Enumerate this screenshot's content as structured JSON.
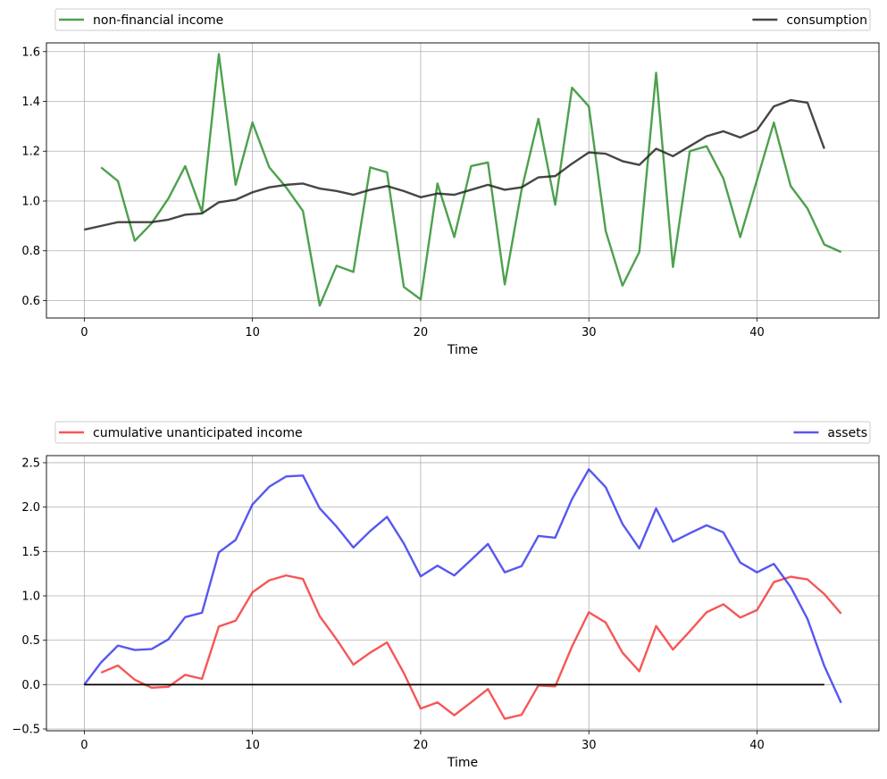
{
  "chart_data": [
    {
      "type": "line",
      "xlabel": "Time",
      "ylabel": "",
      "xlim": [
        -2.25,
        47.25
      ],
      "ylim": [
        0.53,
        1.635
      ],
      "xticks": [
        0,
        10,
        20,
        30,
        40
      ],
      "yticks": [
        0.6,
        0.8,
        1.0,
        1.2,
        1.4,
        1.6
      ],
      "xtick_labels": [
        "0",
        "10",
        "20",
        "30",
        "40"
      ],
      "ytick_labels": [
        "0.6",
        "0.8",
        "1.0",
        "1.2",
        "1.4",
        "1.6"
      ],
      "grid": true,
      "legend": {
        "placement": "top-outside, expanded",
        "entries": [
          "non-financial income",
          "consumption"
        ]
      },
      "series": [
        {
          "name": "non-financial income",
          "color": "#2e912e",
          "x": [
            1,
            2,
            3,
            4,
            5,
            6,
            7,
            8,
            9,
            10,
            11,
            12,
            13,
            14,
            15,
            16,
            17,
            18,
            19,
            20,
            21,
            22,
            23,
            24,
            25,
            26,
            27,
            28,
            29,
            30,
            31,
            32,
            33,
            34,
            35,
            36,
            37,
            38,
            39,
            40,
            41,
            42,
            43,
            44,
            45
          ],
          "values": [
            1.135,
            1.08,
            0.84,
            0.91,
            1.01,
            1.14,
            0.955,
            1.59,
            1.065,
            1.315,
            1.135,
            1.055,
            0.96,
            0.58,
            0.74,
            0.715,
            1.135,
            1.115,
            0.655,
            0.605,
            1.07,
            0.855,
            1.14,
            1.155,
            0.665,
            1.045,
            1.33,
            0.985,
            1.455,
            1.38,
            0.88,
            0.66,
            0.795,
            1.515,
            0.735,
            1.2,
            1.22,
            1.09,
            0.855,
            1.085,
            1.315,
            1.06,
            0.97,
            0.825,
            0.795
          ]
        },
        {
          "name": "consumption",
          "color": "#262626",
          "x": [
            0,
            1,
            2,
            3,
            4,
            5,
            6,
            7,
            8,
            9,
            10,
            11,
            12,
            13,
            14,
            15,
            16,
            17,
            18,
            19,
            20,
            21,
            22,
            23,
            24,
            25,
            26,
            27,
            28,
            29,
            30,
            31,
            32,
            33,
            34,
            35,
            36,
            37,
            38,
            39,
            40,
            41,
            42,
            43,
            44
          ],
          "values": [
            0.885,
            0.9,
            0.915,
            0.915,
            0.915,
            0.925,
            0.945,
            0.95,
            0.995,
            1.005,
            1.035,
            1.055,
            1.065,
            1.07,
            1.05,
            1.04,
            1.025,
            1.045,
            1.06,
            1.04,
            1.015,
            1.03,
            1.025,
            1.045,
            1.065,
            1.045,
            1.055,
            1.095,
            1.1,
            1.15,
            1.195,
            1.19,
            1.16,
            1.145,
            1.21,
            1.18,
            1.22,
            1.26,
            1.28,
            1.255,
            1.285,
            1.38,
            1.405,
            1.395,
            1.21
          ]
        }
      ]
    },
    {
      "type": "line",
      "xlabel": "Time",
      "ylabel": "",
      "xlim": [
        -2.25,
        47.25
      ],
      "ylim": [
        -0.52,
        2.58
      ],
      "xticks": [
        0,
        10,
        20,
        30,
        40
      ],
      "yticks": [
        -0.5,
        0.0,
        0.5,
        1.0,
        1.5,
        2.0,
        2.5
      ],
      "xtick_labels": [
        "0",
        "10",
        "20",
        "30",
        "40"
      ],
      "ytick_labels": [
        "−0.5",
        "0.0",
        "0.5",
        "1.0",
        "1.5",
        "2.0",
        "2.5"
      ],
      "grid": true,
      "legend": {
        "placement": "top-outside, expanded",
        "entries": [
          "cumulative unanticipated income",
          "assets"
        ]
      },
      "series": [
        {
          "name": "cumulative unanticipated income",
          "color": "#f53a3a",
          "x": [
            1,
            2,
            3,
            4,
            5,
            6,
            7,
            8,
            9,
            10,
            11,
            12,
            13,
            14,
            15,
            16,
            17,
            18,
            19,
            20,
            21,
            22,
            23,
            24,
            25,
            26,
            27,
            28,
            29,
            30,
            31,
            32,
            33,
            34,
            35,
            36,
            37,
            38,
            39,
            40,
            41,
            42,
            43,
            44,
            45
          ],
          "values": [
            0.135,
            0.215,
            0.055,
            -0.035,
            -0.025,
            0.11,
            0.065,
            0.655,
            0.72,
            1.04,
            1.175,
            1.23,
            1.19,
            0.77,
            0.51,
            0.225,
            0.36,
            0.475,
            0.13,
            -0.27,
            -0.2,
            -0.345,
            -0.2,
            -0.05,
            -0.385,
            -0.34,
            -0.01,
            -0.02,
            0.43,
            0.815,
            0.7,
            0.36,
            0.15,
            0.66,
            0.395,
            0.6,
            0.815,
            0.905,
            0.755,
            0.84,
            1.155,
            1.215,
            1.185,
            1.02,
            0.8
          ]
        },
        {
          "name": "assets",
          "color": "#3a3af0",
          "x": [
            0,
            1,
            2,
            3,
            4,
            5,
            6,
            7,
            8,
            9,
            10,
            11,
            12,
            13,
            14,
            15,
            16,
            17,
            18,
            19,
            20,
            21,
            22,
            23,
            24,
            25,
            26,
            27,
            28,
            29,
            30,
            31,
            32,
            33,
            34,
            35,
            36,
            37,
            38,
            39,
            40,
            41,
            42,
            43,
            44,
            45
          ],
          "values": [
            0.0,
            0.25,
            0.44,
            0.39,
            0.4,
            0.51,
            0.76,
            0.81,
            1.49,
            1.63,
            2.03,
            2.23,
            2.345,
            2.355,
            1.985,
            1.78,
            1.545,
            1.73,
            1.89,
            1.59,
            1.22,
            1.34,
            1.23,
            1.405,
            1.585,
            1.265,
            1.335,
            1.675,
            1.655,
            2.09,
            2.425,
            2.225,
            1.81,
            1.535,
            1.985,
            1.61,
            1.705,
            1.795,
            1.715,
            1.375,
            1.265,
            1.36,
            1.1,
            0.74,
            0.21,
            -0.205
          ]
        },
        {
          "name": "",
          "color": "#000000",
          "x": [
            0,
            44
          ],
          "values": [
            0,
            0
          ]
        }
      ]
    }
  ]
}
